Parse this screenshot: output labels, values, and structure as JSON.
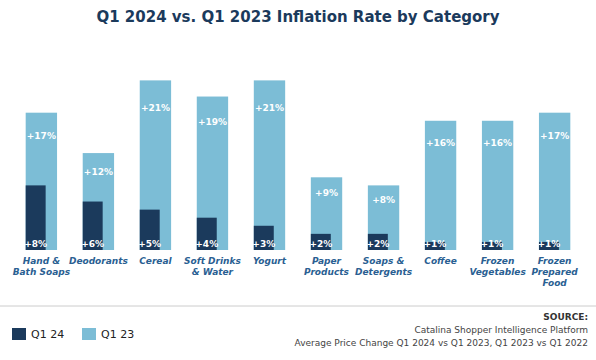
{
  "chart_data": {
    "type": "bar",
    "title": "Q1 2024 vs. Q1 2023 Inflation Rate by Category",
    "categories": [
      "Hand &\nBath Soaps",
      "Deodorants",
      "Cereal",
      "Soft Drinks\n& Water",
      "Yogurt",
      "Paper\nProducts",
      "Soaps &\nDetergents",
      "Coffee",
      "Frozen\nVegetables",
      "Frozen\nPrepared\nFood"
    ],
    "series": [
      {
        "name": "Q1 23",
        "color": "#7cbdd6",
        "values": [
          17,
          12,
          21,
          19,
          21,
          9,
          8,
          16,
          16,
          17
        ],
        "value_labels": [
          "+17%",
          "+12%",
          "+21%",
          "+19%",
          "+21%",
          "+9%",
          "+8%",
          "+16%",
          "+16%",
          "+17%"
        ]
      },
      {
        "name": "Q1 24",
        "color": "#1b3a5c",
        "values": [
          8,
          6,
          5,
          4,
          3,
          2,
          2,
          1,
          1,
          1
        ],
        "value_labels": [
          "+8%",
          "+6%",
          "+5%",
          "+4%",
          "+3%",
          "+2%",
          "+2%",
          "+1%",
          "+1%",
          "+1%"
        ]
      }
    ],
    "ylim": [
      0,
      26
    ],
    "grid": false,
    "data_labels": true,
    "tick_labels": "x",
    "annotations": [
      "SOURCE:",
      "Catalina Shopper Intelligence Platform",
      "Average Price Change Q1 2024 vs Q1 2023, Q1 2023 vs Q1 2022"
    ]
  }
}
